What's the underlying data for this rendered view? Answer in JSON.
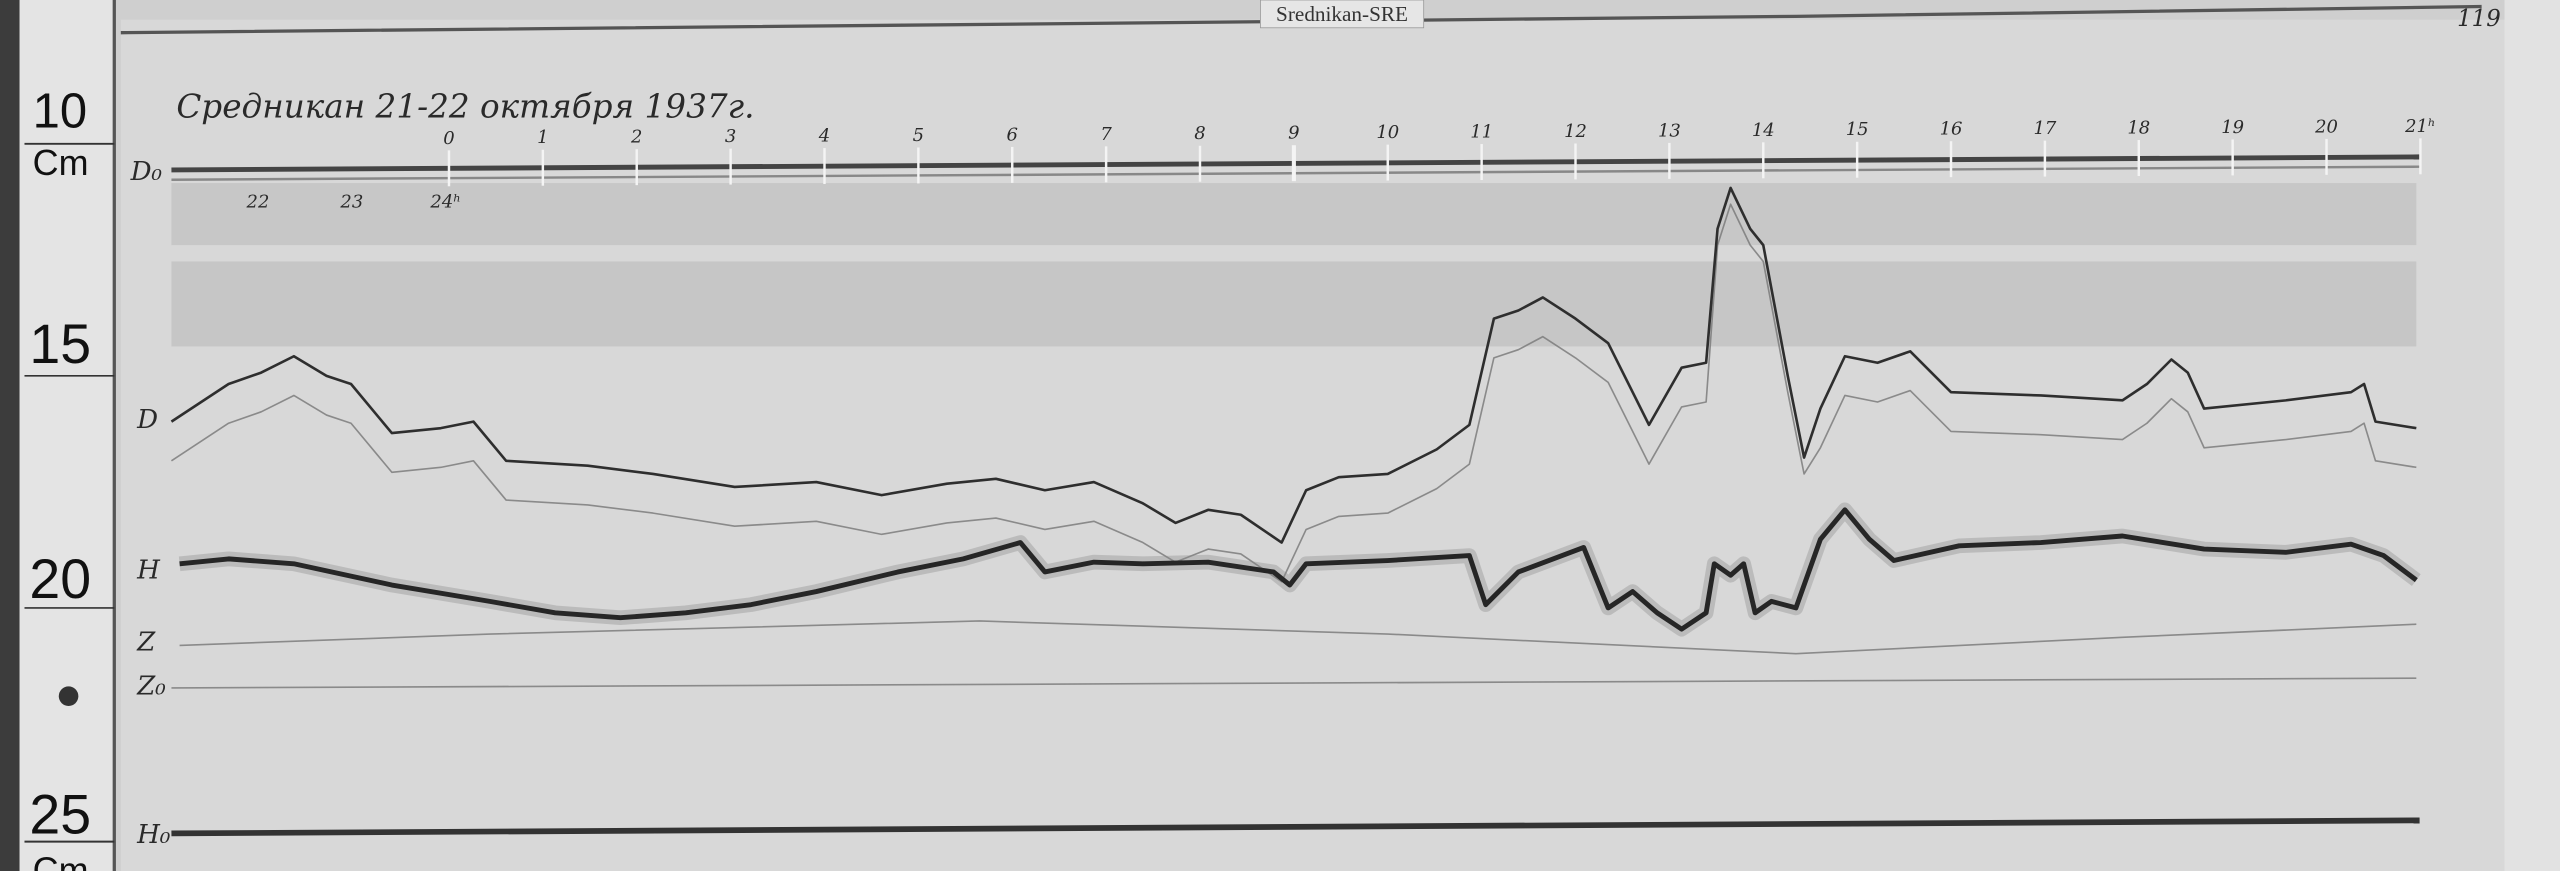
{
  "station_label": "Srednikan-SRE",
  "sheet_number": "119",
  "title_handwritten": "Средникан  21-22 октября 1937г.",
  "ruler": {
    "marks": [
      "10",
      "Cm",
      "15",
      "20",
      "25",
      "Cm"
    ]
  },
  "trace_labels": {
    "d0": "D₀",
    "d": "D",
    "h": "H",
    "z": "Z",
    "z0": "Z₀",
    "h0": "H₀"
  },
  "hour_ticks_top": [
    "0",
    "1",
    "2",
    "3",
    "4",
    "5",
    "6",
    "7",
    "8",
    "9",
    "10",
    "11",
    "12",
    "13",
    "14",
    "15",
    "16",
    "17",
    "18",
    "19",
    "20",
    "21ʰ"
  ],
  "hour_ticks_bottom": [
    "22",
    "23",
    "24ʰ"
  ],
  "colors": {
    "paper": "#d6d6d6",
    "trace": "#2e2e2e",
    "ruler_bg": "#e4e4e4"
  }
}
